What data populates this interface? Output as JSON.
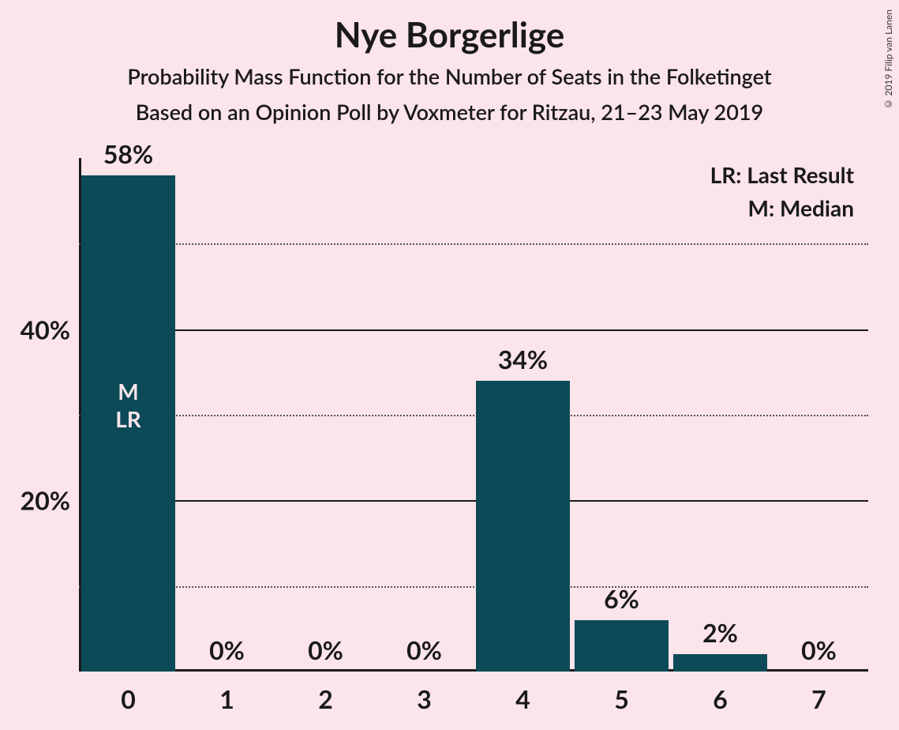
{
  "title": "Nye Borgerlige",
  "subtitle1": "Probability Mass Function for the Number of Seats in the Folketinget",
  "subtitle2": "Based on an Opinion Poll by Voxmeter for Ritzau, 21–23 May 2019",
  "copyright": "© 2019 Filip van Lanen",
  "legend": {
    "lr": "LR: Last Result",
    "m": "M: Median"
  },
  "chart": {
    "type": "bar",
    "background_color": "#fce4eb",
    "bar_color": "#0b4a56",
    "text_color": "#1a1a1a",
    "grid_solid_color": "#1a1a1a",
    "grid_dotted_color": "#555555",
    "bar_inner_text_color": "#fce4eb",
    "title_fontsize": 44,
    "subtitle_fontsize": 27,
    "axis_label_fontsize": 32,
    "bar_label_fontsize": 32,
    "bar_anno_fontsize": 28,
    "legend_fontsize": 28,
    "bar_width_ratio": 0.95,
    "ylim": [
      0,
      60
    ],
    "ytick_major": [
      20,
      40
    ],
    "ytick_minor": [
      10,
      30,
      50
    ],
    "ytick_labels": {
      "20": "20%",
      "40": "40%"
    },
    "categories": [
      "0",
      "1",
      "2",
      "3",
      "4",
      "5",
      "6",
      "7"
    ],
    "values": [
      58,
      0,
      0,
      0,
      34,
      6,
      2,
      0
    ],
    "value_labels": [
      "58%",
      "0%",
      "0%",
      "0%",
      "34%",
      "6%",
      "2%",
      "0%"
    ],
    "annotations": [
      {
        "category_index": 0,
        "lines": [
          "M",
          "LR"
        ]
      }
    ]
  }
}
